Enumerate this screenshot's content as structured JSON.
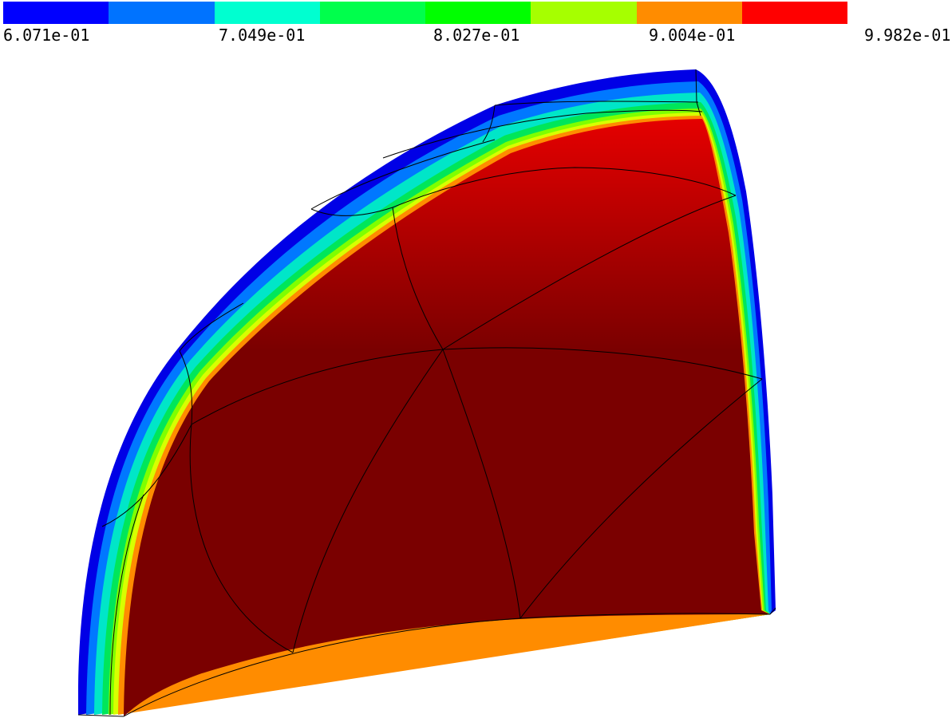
{
  "colorbar": {
    "colors": [
      "#0000ff",
      "#0073ff",
      "#00ffd0",
      "#00ff4c",
      "#00ff00",
      "#a6ff00",
      "#ff8c00",
      "#ff0000"
    ],
    "tick_labels": [
      "6.071e-01",
      "7.049e-01",
      "8.027e-01",
      "9.004e-01",
      "9.982e-01"
    ]
  },
  "plot": {
    "surface_color_high": "#ff0000",
    "surface_color_dark": "#7a0000"
  }
}
